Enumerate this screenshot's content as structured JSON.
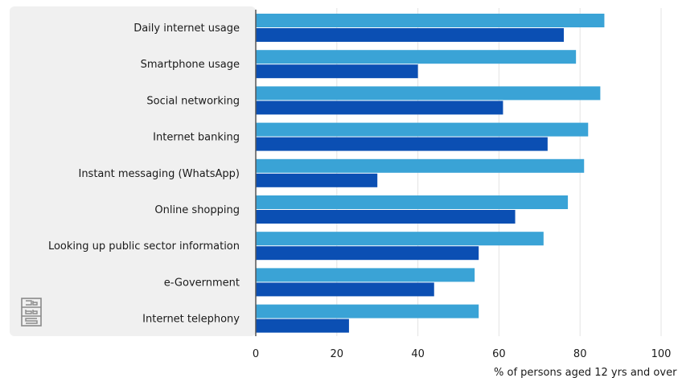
{
  "chart_data": {
    "type": "bar",
    "orientation": "horizontal",
    "categories": [
      "Daily internet usage",
      "Smartphone usage",
      "Social networking",
      "Internet banking",
      "Instant messaging (WhatsApp)",
      "Online shopping",
      "Looking up public sector information",
      "e-Government",
      "Internet telephony"
    ],
    "series": [
      {
        "color": "#3aa3d6",
        "values": [
          86,
          79,
          85,
          82,
          81,
          77,
          71,
          54,
          55
        ]
      },
      {
        "color": "#0b4fb3",
        "values": [
          76,
          40,
          61,
          72,
          30,
          64,
          55,
          44,
          23
        ]
      }
    ],
    "xlabel": "% of persons aged 12 yrs and over",
    "xlim": [
      0,
      100
    ],
    "xticks": [
      0,
      20,
      40,
      60,
      80,
      100
    ],
    "grid": true,
    "logo": "cbs"
  }
}
